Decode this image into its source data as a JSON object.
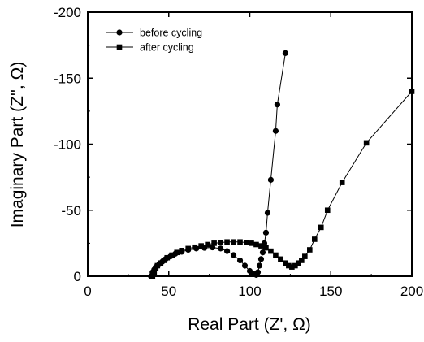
{
  "chart_data": {
    "type": "scatter",
    "title": "",
    "xlabel": "Real Part (Z', Ω)",
    "ylabel": "Imaginary Part (Z'',   Ω)",
    "xlim": [
      0,
      200
    ],
    "ylim": [
      0,
      -200
    ],
    "x_ticks": [
      "0",
      "50",
      "100",
      "150",
      "200"
    ],
    "y_ticks": [
      "0",
      "-50",
      "-100",
      "-150",
      "-200"
    ],
    "grid": false,
    "legend_position": "top-left",
    "series": [
      {
        "name": "before cycling",
        "marker": "circle",
        "color": "#000000",
        "x": [
          39,
          40,
          41,
          42,
          44,
          46,
          48,
          51,
          54,
          58,
          62,
          67,
          72,
          77,
          82,
          86,
          90,
          94,
          97,
          100,
          102,
          104,
          105,
          106,
          107,
          108,
          109,
          110,
          111,
          113,
          116,
          117,
          122
        ],
        "y": [
          0,
          -3,
          -5,
          -7,
          -9,
          -11,
          -13,
          -15,
          -17,
          -18.5,
          -20,
          -21,
          -21.5,
          -21.8,
          -21,
          -19,
          -16,
          -12,
          -8,
          -4,
          -2,
          -1,
          -3,
          -8,
          -13,
          -18,
          -25,
          -33,
          -48,
          -73,
          -110,
          -130,
          -169
        ]
      },
      {
        "name": "after cycling",
        "marker": "square",
        "color": "#000000",
        "x": [
          40,
          41,
          42,
          43,
          45,
          47,
          49,
          52,
          55,
          58,
          62,
          66,
          70,
          74,
          78,
          82,
          86,
          90,
          94,
          98,
          101,
          104,
          107,
          110,
          113,
          116,
          119,
          122,
          124,
          126,
          128,
          130,
          132,
          134,
          137,
          140,
          144,
          148,
          157,
          172,
          200
        ],
        "y": [
          0,
          -3,
          -6,
          -8,
          -10,
          -12,
          -14,
          -16,
          -18,
          -19.5,
          -21,
          -22,
          -23,
          -24,
          -25,
          -25.5,
          -26,
          -26,
          -26,
          -25.5,
          -25,
          -24,
          -23,
          -21.5,
          -19,
          -16,
          -13,
          -10,
          -8,
          -7,
          -8,
          -10,
          -12,
          -15,
          -20,
          -28,
          -37,
          -50,
          -71,
          -101,
          -140
        ]
      }
    ]
  }
}
